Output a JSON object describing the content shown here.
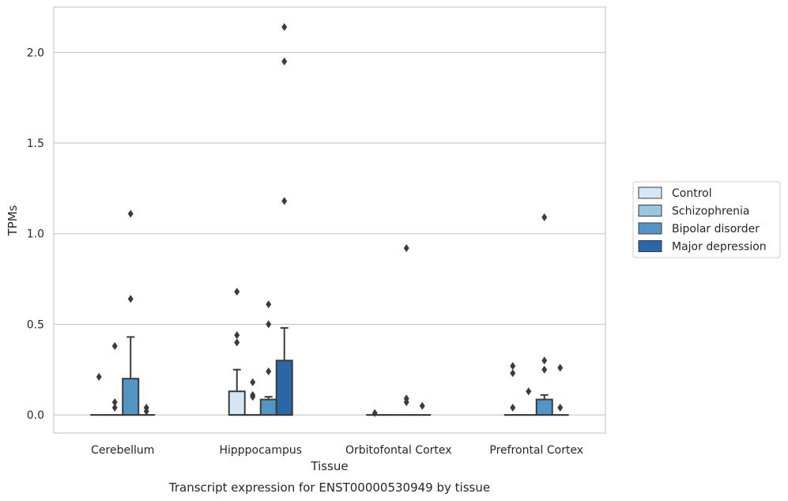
{
  "caption": "Transcript expression for ENST00000530949 by tissue",
  "legend": {
    "items": [
      {
        "label": "Control",
        "color": "#d6e6f4"
      },
      {
        "label": "Schizophrenia",
        "color": "#9cc6e0"
      },
      {
        "label": "Bipolar disorder",
        "color": "#5595c6"
      },
      {
        "label": "Major depression",
        "color": "#2a66a8"
      }
    ]
  },
  "chart_data": {
    "type": "box",
    "xlabel": "Tissue",
    "ylabel": "TPMs",
    "ylim": [
      -0.1,
      2.25
    ],
    "yticks": [
      "0.0",
      "0.5",
      "1.0",
      "1.5",
      "2.0"
    ],
    "grid": "horizontal",
    "legend_position": "right",
    "categories": [
      "Cerebellum",
      "Hipppocampus",
      "Orbitofontal Cortex",
      "Prefrontal Cortex"
    ],
    "series": [
      {
        "name": "Control",
        "boxes": [
          {
            "q1": 0,
            "median": 0,
            "q3": 0,
            "whisker_low": 0,
            "whisker_high": 0,
            "outliers": [
              0.21
            ]
          },
          {
            "q1": 0,
            "median": 0,
            "q3": 0.13,
            "whisker_low": 0,
            "whisker_high": 0.25,
            "outliers": [
              0.4,
              0.44,
              0.68
            ]
          },
          {
            "q1": 0,
            "median": 0,
            "q3": 0,
            "whisker_low": 0,
            "whisker_high": 0,
            "outliers": [
              0.01
            ]
          },
          {
            "q1": 0,
            "median": 0,
            "q3": 0,
            "whisker_low": 0,
            "whisker_high": 0,
            "outliers": [
              0.04,
              0.23,
              0.27
            ]
          }
        ]
      },
      {
        "name": "Schizophrenia",
        "boxes": [
          {
            "q1": 0,
            "median": 0,
            "q3": 0,
            "whisker_low": 0,
            "whisker_high": 0,
            "outliers": [
              0.04,
              0.07,
              0.38
            ]
          },
          {
            "q1": 0,
            "median": 0,
            "q3": 0,
            "whisker_low": 0,
            "whisker_high": 0,
            "outliers": [
              0.1,
              0.11,
              0.18
            ]
          },
          {
            "q1": 0,
            "median": 0,
            "q3": 0,
            "whisker_low": 0,
            "whisker_high": 0,
            "outliers": []
          },
          {
            "q1": 0,
            "median": 0,
            "q3": 0,
            "whisker_low": 0,
            "whisker_high": 0,
            "outliers": [
              0.13
            ]
          }
        ]
      },
      {
        "name": "Bipolar disorder",
        "boxes": [
          {
            "q1": 0,
            "median": 0,
            "q3": 0.2,
            "whisker_low": 0,
            "whisker_high": 0.43,
            "outliers": [
              0.64,
              1.11
            ]
          },
          {
            "q1": 0,
            "median": 0,
            "q3": 0.085,
            "whisker_low": 0,
            "whisker_high": 0.1,
            "outliers": [
              0.24,
              0.5,
              0.61
            ]
          },
          {
            "q1": 0,
            "median": 0,
            "q3": 0,
            "whisker_low": 0,
            "whisker_high": 0,
            "outliers": [
              0.07,
              0.09,
              0.92
            ]
          },
          {
            "q1": 0,
            "median": 0,
            "q3": 0.085,
            "whisker_low": 0,
            "whisker_high": 0.11,
            "outliers": [
              0.25,
              0.3,
              1.09
            ]
          }
        ]
      },
      {
        "name": "Major depression",
        "boxes": [
          {
            "q1": 0,
            "median": 0,
            "q3": 0,
            "whisker_low": 0,
            "whisker_high": 0,
            "outliers": [
              0.02,
              0.04
            ]
          },
          {
            "q1": 0,
            "median": 0,
            "q3": 0.3,
            "whisker_low": 0,
            "whisker_high": 0.48,
            "outliers": [
              1.18,
              1.95,
              2.14
            ]
          },
          {
            "q1": 0,
            "median": 0,
            "q3": 0,
            "whisker_low": 0,
            "whisker_high": 0,
            "outliers": [
              0.05
            ]
          },
          {
            "q1": 0,
            "median": 0,
            "q3": 0,
            "whisker_low": 0,
            "whisker_high": 0,
            "outliers": [
              0.04,
              0.26
            ]
          }
        ]
      }
    ]
  }
}
